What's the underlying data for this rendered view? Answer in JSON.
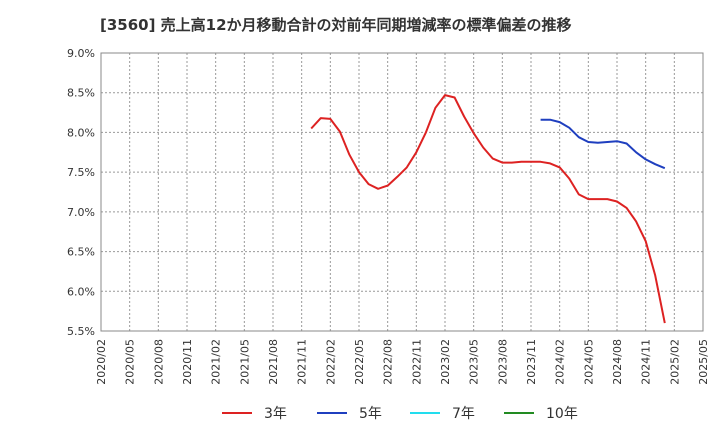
{
  "chart_data": {
    "type": "line",
    "title": "[3560]  売上高12か月移動合計の対前年同期増減率の標準偏差の推移",
    "x_ticks": [
      "2020/02",
      "2020/05",
      "2020/08",
      "2020/11",
      "2021/02",
      "2021/05",
      "2021/08",
      "2021/11",
      "2022/02",
      "2022/05",
      "2022/08",
      "2022/11",
      "2023/02",
      "2023/05",
      "2023/08",
      "2023/11",
      "2024/02",
      "2024/05",
      "2024/08",
      "2024/11",
      "2025/02",
      "2025/05"
    ],
    "y_ticks": [
      "9.0%",
      "8.5%",
      "8.0%",
      "7.5%",
      "7.0%",
      "6.5%",
      "6.0%",
      "5.5%"
    ],
    "ylim": [
      5.5,
      9.0
    ],
    "grid": true,
    "legend_position": "bottom",
    "series": [
      {
        "name": "3年",
        "color": "#dd2222",
        "x": [
          "2021/12",
          "2022/01",
          "2022/02",
          "2022/03",
          "2022/04",
          "2022/05",
          "2022/06",
          "2022/07",
          "2022/08",
          "2022/09",
          "2022/10",
          "2022/11",
          "2022/12",
          "2023/01",
          "2023/02",
          "2023/03",
          "2023/04",
          "2023/05",
          "2023/06",
          "2023/07",
          "2023/08",
          "2023/09",
          "2023/10",
          "2023/11",
          "2023/12",
          "2024/01",
          "2024/02",
          "2024/03",
          "2024/04",
          "2024/05",
          "2024/06",
          "2024/07",
          "2024/08",
          "2024/09",
          "2024/10",
          "2024/11",
          "2024/12",
          "2025/01",
          "2025/02"
        ],
        "values": [
          8.05,
          8.18,
          8.17,
          8.01,
          7.72,
          7.5,
          7.35,
          7.29,
          7.33,
          7.44,
          7.56,
          7.75,
          8.0,
          8.31,
          8.47,
          8.44,
          8.2,
          7.99,
          7.81,
          7.67,
          7.62,
          7.62,
          7.63,
          7.63,
          7.63,
          7.61,
          7.56,
          7.42,
          7.22,
          7.16,
          7.16,
          7.16,
          7.13,
          7.05,
          6.88,
          6.63,
          6.2,
          5.6,
          null
        ]
      },
      {
        "name": "5年",
        "color": "#1f3fbf",
        "x": [
          "2023/12",
          "2024/01",
          "2024/02",
          "2024/03",
          "2024/04",
          "2024/05",
          "2024/06",
          "2024/07",
          "2024/08",
          "2024/09",
          "2024/10",
          "2024/11",
          "2024/12",
          "2025/01"
        ],
        "values": [
          8.16,
          8.16,
          8.13,
          8.06,
          7.94,
          7.88,
          7.87,
          7.88,
          7.89,
          7.86,
          7.75,
          7.66,
          7.6,
          7.55
        ]
      },
      {
        "name": "7年",
        "color": "#22ddee",
        "x": [],
        "values": []
      },
      {
        "name": "10年",
        "color": "#228b22",
        "x": [],
        "values": []
      }
    ]
  }
}
